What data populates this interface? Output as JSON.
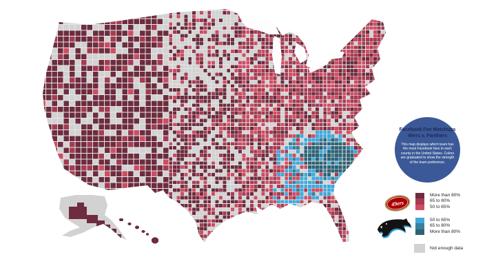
{
  "page": {
    "background": "#ffffff"
  },
  "title_bubble": {
    "bg_color": "#3b5998",
    "title_line1": "Facebook Fan Matchups",
    "title_line2": "49ers v. Panthers",
    "description": "This map displays which team has the most Facebook fans in each county in the United States. Colors are graduated to show the strength of the team preference."
  },
  "legend": {
    "team1": {
      "entries": [
        {
          "label": "More than 80%",
          "color": "#6e2c3e"
        },
        {
          "label": "65 to 80%",
          "color": "#a43c52"
        },
        {
          "label": "50 to 65%",
          "color": "#cf4d63"
        }
      ]
    },
    "team2": {
      "entries": [
        {
          "label": "50 to 65%",
          "color": "#3fa9dc"
        },
        {
          "label": "65 to 80%",
          "color": "#3b7f9e"
        },
        {
          "label": "More than 80%",
          "color": "#2f6273"
        }
      ]
    },
    "no_data": {
      "label": "Not enough data",
      "color": "#d2d2d2"
    }
  },
  "logos": {
    "team1_text": "49ers",
    "team1_oval_color": "#aa0000",
    "team1_ring_color": "#b3995d",
    "team2_accent_color": "#2f9bd0",
    "team2_body_color": "#131313"
  },
  "map": {
    "base_color": "#e6e6e6",
    "water_color": "#fdfdfd",
    "colors": {
      "m80": "#6e2c3e",
      "m65": "#a43c52",
      "n50": "#cf4d63",
      "p50": "#3fa9dc",
      "p65": "#3b7f9e",
      "p80": "#2f6273",
      "gray": "#d2d2d2"
    }
  }
}
